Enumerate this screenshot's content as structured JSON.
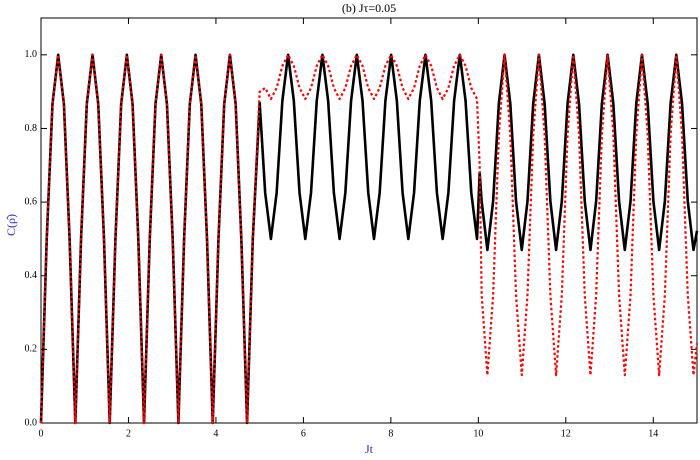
{
  "chart_data": {
    "type": "line",
    "title": "(b) Jτ=0.05",
    "xlabel": "Jt",
    "ylabel": "C(ρ̂)",
    "x": [
      0,
      0.131,
      0.262,
      0.393,
      0.524,
      0.654,
      0.785,
      0.916,
      1.047,
      1.178,
      1.309,
      1.44,
      1.571,
      1.702,
      1.833,
      1.963,
      2.094,
      2.225,
      2.356,
      2.487,
      2.618,
      2.749,
      2.88,
      3.011,
      3.142,
      3.272,
      3.403,
      3.534,
      3.665,
      3.796,
      3.927,
      4.058,
      4.189,
      4.32,
      4.451,
      4.581,
      4.712,
      4.843,
      5.0,
      5.126,
      5.257,
      5.388,
      5.519,
      5.65,
      5.781,
      5.912,
      6.043,
      6.174,
      6.305,
      6.435,
      6.566,
      6.697,
      6.828,
      6.959,
      7.09,
      7.221,
      7.352,
      7.483,
      7.614,
      7.744,
      7.875,
      8.006,
      8.137,
      8.268,
      8.399,
      8.53,
      8.661,
      8.792,
      8.922,
      9.053,
      9.184,
      9.315,
      9.446,
      9.577,
      9.708,
      9.839,
      9.97,
      10.03,
      10.076,
      10.207,
      10.338,
      10.469,
      10.6,
      10.731,
      10.862,
      10.993,
      11.124,
      11.255,
      11.385,
      11.516,
      11.647,
      11.778,
      11.909,
      12.04,
      12.171,
      12.302,
      12.433,
      12.564,
      12.694,
      12.825,
      12.956,
      13.087,
      13.218,
      13.349,
      13.48,
      13.611,
      13.742,
      13.873,
      14.003,
      14.134,
      14.265,
      14.396,
      14.527,
      14.658,
      14.789,
      14.92,
      15
    ],
    "series": [
      {
        "name": "solid",
        "color": "#000000",
        "values": [
          0,
          0.5,
          0.866,
          1,
          0.866,
          0.5,
          0,
          0.5,
          0.866,
          1,
          0.866,
          0.5,
          0,
          0.5,
          0.866,
          1,
          0.866,
          0.5,
          0,
          0.5,
          0.866,
          1,
          0.866,
          0.5,
          0,
          0.5,
          0.866,
          1,
          0.866,
          0.5,
          0,
          0.5,
          0.866,
          1,
          0.866,
          0.5,
          0,
          0.5,
          0.87,
          0.625,
          0.5,
          0.625,
          0.875,
          1,
          0.875,
          0.625,
          0.5,
          0.625,
          0.875,
          1,
          0.875,
          0.625,
          0.5,
          0.625,
          0.875,
          1,
          0.875,
          0.625,
          0.5,
          0.625,
          0.875,
          1,
          0.875,
          0.625,
          0.5,
          0.625,
          0.875,
          1,
          0.875,
          0.625,
          0.5,
          0.625,
          0.875,
          1,
          0.875,
          0.625,
          0.5,
          0.68,
          0.6025,
          0.47,
          0.6025,
          0.8675,
          1,
          0.8675,
          0.6025,
          0.47,
          0.6025,
          0.8675,
          1,
          0.8675,
          0.6025,
          0.47,
          0.6025,
          0.8675,
          1,
          0.8675,
          0.6025,
          0.47,
          0.6025,
          0.8675,
          1,
          0.8675,
          0.6025,
          0.47,
          0.6025,
          0.8675,
          1,
          0.8675,
          0.6025,
          0.47,
          0.6025,
          0.8675,
          1,
          0.8675,
          0.6025,
          0.47,
          0.522
        ]
      },
      {
        "name": "dotted",
        "color": "#ff0000",
        "dash": true,
        "values": [
          0,
          0.5,
          0.866,
          1,
          0.866,
          0.5,
          0,
          0.5,
          0.866,
          1,
          0.866,
          0.5,
          0,
          0.5,
          0.866,
          1,
          0.866,
          0.5,
          0,
          0.5,
          0.866,
          1,
          0.866,
          0.5,
          0,
          0.5,
          0.866,
          1,
          0.866,
          0.5,
          0,
          0.5,
          0.866,
          1,
          0.866,
          0.5,
          0,
          0.5,
          0.9,
          0.91,
          0.88,
          0.91,
          0.97,
          1,
          0.97,
          0.91,
          0.88,
          0.91,
          0.97,
          1,
          0.97,
          0.91,
          0.88,
          0.91,
          0.97,
          1,
          0.97,
          0.91,
          0.88,
          0.91,
          0.97,
          1,
          0.97,
          0.91,
          0.88,
          0.91,
          0.97,
          1,
          0.97,
          0.91,
          0.88,
          0.91,
          0.97,
          1,
          0.97,
          0.91,
          0.88,
          0.7,
          0.3475,
          0.13,
          0.3475,
          0.7825,
          1,
          0.7825,
          0.3475,
          0.13,
          0.3475,
          0.7825,
          1,
          0.7825,
          0.3475,
          0.13,
          0.3475,
          0.7825,
          1,
          0.7825,
          0.3475,
          0.13,
          0.3475,
          0.7825,
          1,
          0.7825,
          0.3475,
          0.13,
          0.3475,
          0.7825,
          1,
          0.7825,
          0.3475,
          0.13,
          0.3475,
          0.7825,
          1,
          0.7825,
          0.3475,
          0.13,
          0.216
        ]
      }
    ],
    "xlim": [
      0,
      15
    ],
    "xticks": [
      0,
      2,
      4,
      6,
      8,
      10,
      12,
      14
    ],
    "ylim": [
      0,
      1.1
    ],
    "yticks": [
      {
        "value": 0,
        "label": "0.0"
      },
      0.2,
      0.4,
      0.6,
      0.8,
      {
        "value": 1,
        "label": "1.0"
      }
    ]
  }
}
